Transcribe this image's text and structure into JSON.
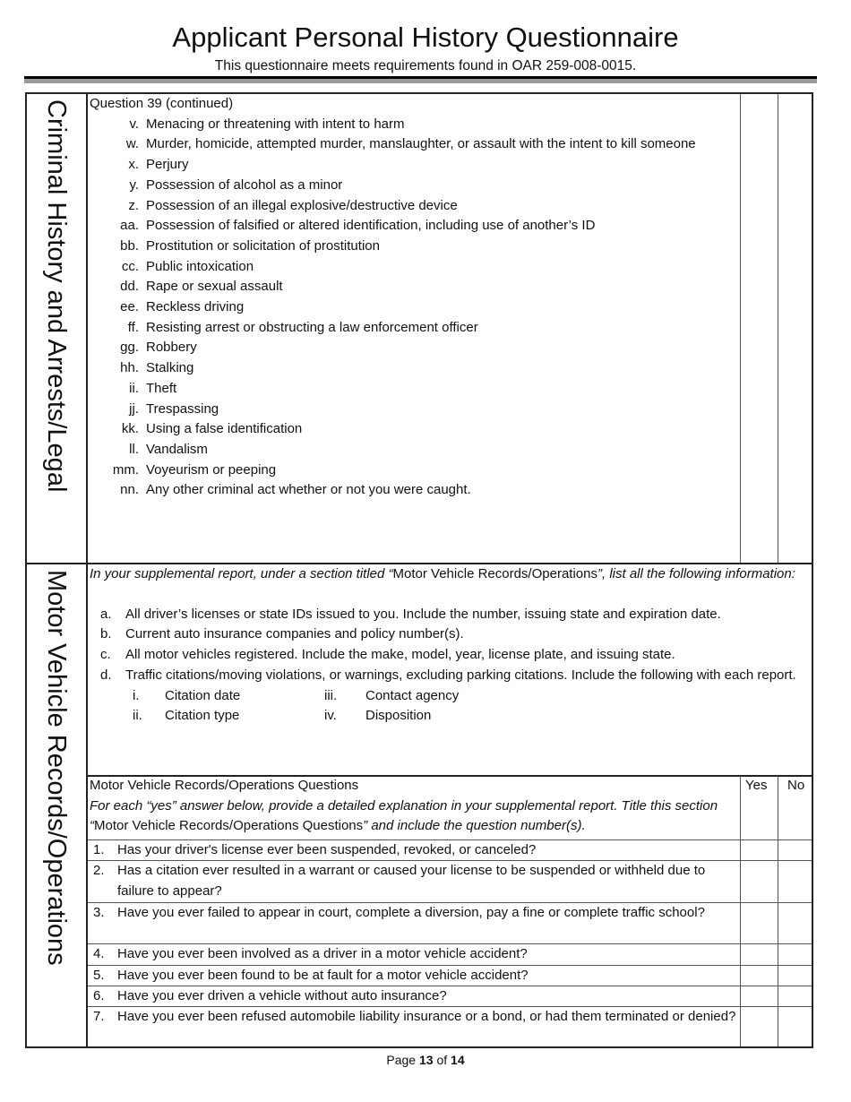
{
  "header": {
    "title": "Applicant Personal History Questionnaire",
    "subtitle": "This questionnaire meets requirements found in OAR 259-008-0015."
  },
  "section1": {
    "side_label": "Criminal History and Arrests/Legal",
    "heading": "Question 39 (continued)",
    "items": [
      {
        "label": "v.",
        "text": "Menacing or threatening with intent to harm"
      },
      {
        "label": "w.",
        "text": "Murder, homicide, attempted murder, manslaughter, or assault with the intent to kill someone"
      },
      {
        "label": "x.",
        "text": "Perjury"
      },
      {
        "label": "y.",
        "text": "Possession of alcohol as a minor"
      },
      {
        "label": "z.",
        "text": "Possession of an illegal explosive/destructive device"
      },
      {
        "label": "aa.",
        "text": "Possession of falsified or altered identification, including use of another’s ID"
      },
      {
        "label": "bb.",
        "text": "Prostitution or solicitation of prostitution"
      },
      {
        "label": "cc.",
        "text": "Public intoxication"
      },
      {
        "label": "dd.",
        "text": "Rape or sexual assault"
      },
      {
        "label": "ee.",
        "text": "Reckless driving"
      },
      {
        "label": "ff.",
        "text": "Resisting arrest or obstructing a law enforcement officer"
      },
      {
        "label": "gg.",
        "text": "Robbery"
      },
      {
        "label": "hh.",
        "text": "Stalking"
      },
      {
        "label": "ii.",
        "text": "Theft"
      },
      {
        "label": "jj.",
        "text": "Trespassing"
      },
      {
        "label": "kk.",
        "text": "Using a false identification"
      },
      {
        "label": "ll.",
        "text": "Vandalism"
      },
      {
        "label": "mm.",
        "text": "Voyeurism or peeping"
      },
      {
        "label": "nn.",
        "text": "Any other criminal act whether or not you were caught."
      }
    ]
  },
  "section2": {
    "side_label": "Motor Vehicle Records/Operations",
    "intro_pre": "In your supplemental report, under a section titled “",
    "intro_bold": "Motor Vehicle Records/Operations",
    "intro_post": "”, list all the following information:",
    "items": [
      {
        "label": "a.",
        "text": "All driver’s licenses or state IDs issued to you. Include the number, issuing state and expiration date."
      },
      {
        "label": "b.",
        "text": "Current auto insurance companies and policy number(s)."
      },
      {
        "label": "c.",
        "text": "All motor vehicles registered. Include the make, model, year, license plate, and issuing state."
      },
      {
        "label": "d.",
        "text": "Traffic citations/moving violations, or warnings, excluding parking citations. Include the following with each report."
      }
    ],
    "subitems": [
      {
        "label": "i.",
        "text": "Citation date"
      },
      {
        "label": "ii.",
        "text": "Citation type"
      },
      {
        "label": "iii.",
        "text": "Contact agency"
      },
      {
        "label": "iv.",
        "text": "Disposition"
      }
    ],
    "questions_title": "Motor Vehicle Records/Operations Questions",
    "questions_note_pre": "For each “yes” answer below, provide a detailed explanation in your supplemental report. Title this section “",
    "questions_note_bold": "Motor Vehicle Records/Operations Questions",
    "questions_note_post": "” and include the question number(s).",
    "yes_label": "Yes",
    "no_label": "No",
    "questions": [
      {
        "num": "1.",
        "text": "Has your driver's license ever been suspended, revoked, or canceled?"
      },
      {
        "num": "2.",
        "text": "Has a citation ever resulted in a warrant or caused your license to be suspended or withheld due to failure to appear?"
      },
      {
        "num": "3.",
        "text": "Have you ever failed to appear in court, complete a diversion, pay a fine or complete traffic school?"
      },
      {
        "num": "4.",
        "text": "Have you ever been involved as a driver in a motor vehicle accident?"
      },
      {
        "num": "5.",
        "text": "Have you ever been found to be at fault for a motor vehicle accident?"
      },
      {
        "num": "6.",
        "text": "Have you ever driven a vehicle without auto insurance?"
      },
      {
        "num": "7.",
        "text": "Have you ever been refused automobile liability insurance or a bond, or had them terminated or denied?"
      }
    ]
  },
  "footer": {
    "page_word": "Page",
    "page": "13",
    "of_word": "of",
    "total": "14"
  }
}
